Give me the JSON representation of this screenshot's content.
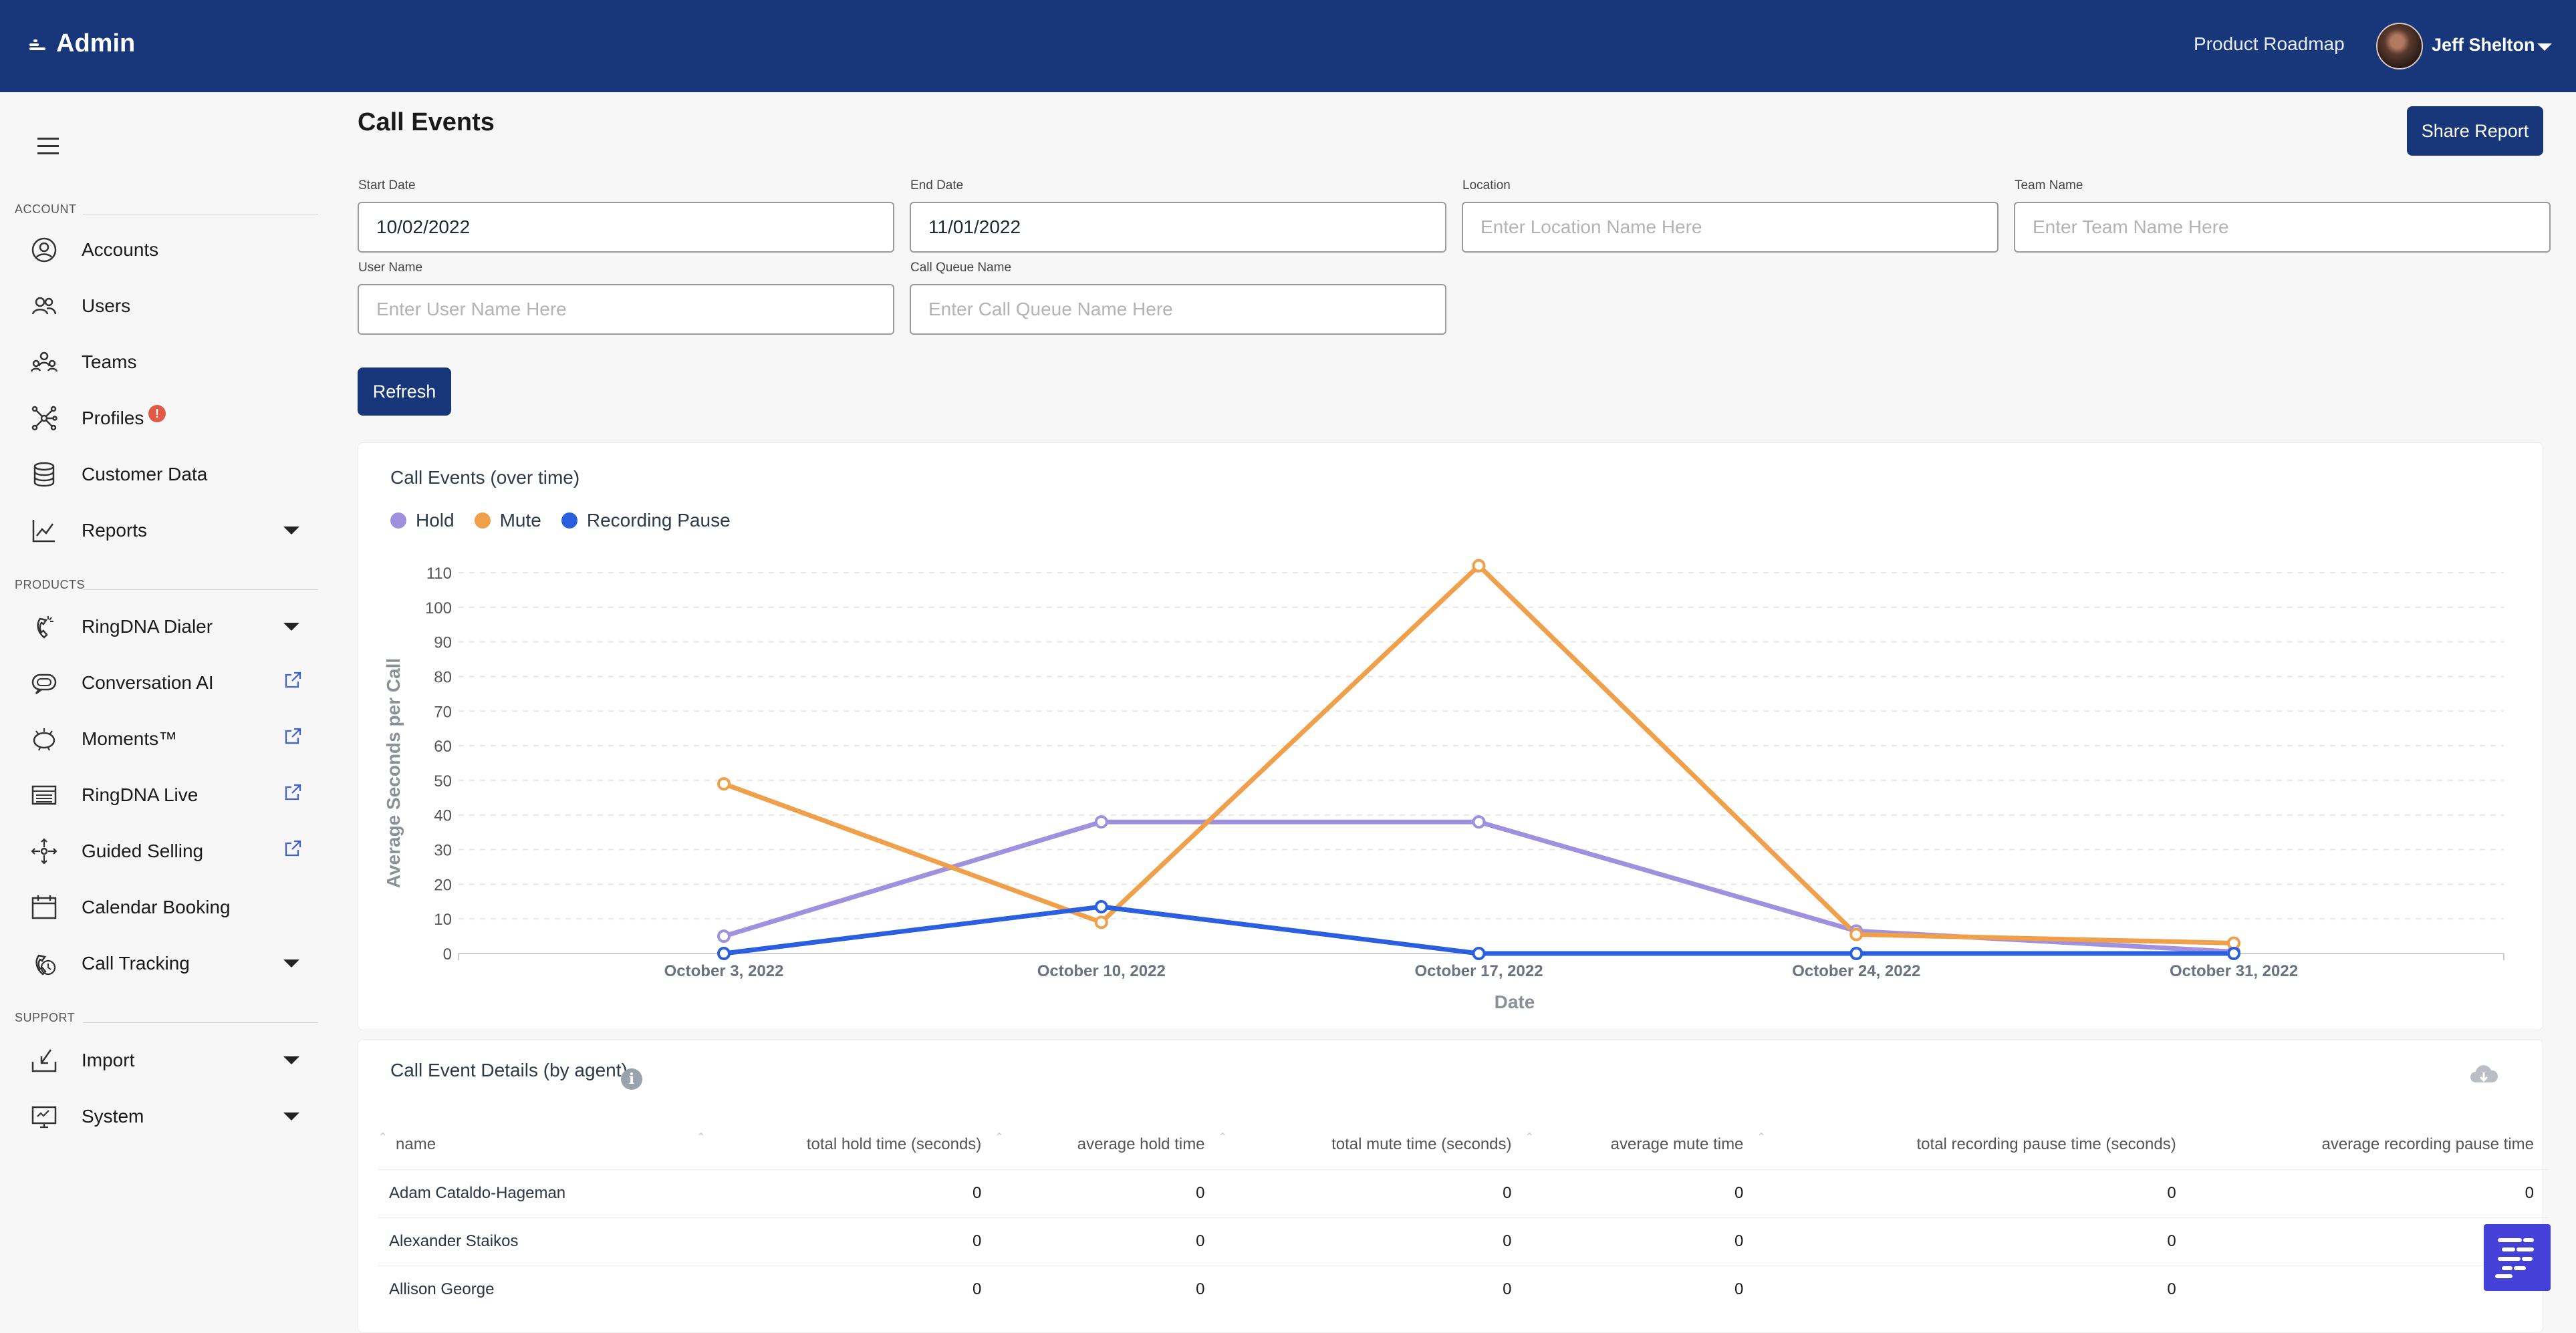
{
  "header": {
    "brand": "Admin",
    "product_roadmap": "Product Roadmap",
    "user_name": "Jeff Shelton"
  },
  "sidebar": {
    "sections": {
      "account": "ACCOUNT",
      "products": "PRODUCTS",
      "support": "SUPPORT"
    },
    "items": [
      {
        "label": "Accounts",
        "icon": "user-circle-icon"
      },
      {
        "label": "Users",
        "icon": "users-icon"
      },
      {
        "label": "Teams",
        "icon": "teams-icon"
      },
      {
        "label": "Profiles",
        "icon": "network-icon",
        "badge": "!"
      },
      {
        "label": "Customer Data",
        "icon": "database-icon"
      },
      {
        "label": "Reports",
        "icon": "chart-line-icon",
        "expandable": true
      },
      {
        "label": "RingDNA Dialer",
        "icon": "phone-icon",
        "expandable": true
      },
      {
        "label": "Conversation AI",
        "icon": "chat-bubble-icon",
        "external": true
      },
      {
        "label": "Moments™",
        "icon": "bell-icon",
        "external": true
      },
      {
        "label": "RingDNA Live",
        "icon": "browser-icon",
        "external": true
      },
      {
        "label": "Guided Selling",
        "icon": "move-arrows-icon",
        "external": true
      },
      {
        "label": "Calendar Booking",
        "icon": "calendar-icon"
      },
      {
        "label": "Call Tracking",
        "icon": "call-tracking-icon",
        "expandable": true
      },
      {
        "label": "Import",
        "icon": "import-icon",
        "expandable": true
      },
      {
        "label": "System",
        "icon": "monitor-icon",
        "expandable": true
      }
    ]
  },
  "main": {
    "title": "Call Events",
    "share_button": "Share Report",
    "filters": {
      "start_date": {
        "label": "Start Date",
        "value": "10/02/2022",
        "placeholder": ""
      },
      "end_date": {
        "label": "End Date",
        "value": "11/01/2022",
        "placeholder": ""
      },
      "location": {
        "label": "Location",
        "value": "",
        "placeholder": "Enter Location Name Here"
      },
      "team_name": {
        "label": "Team Name",
        "value": "",
        "placeholder": "Enter Team Name Here"
      },
      "user_name": {
        "label": "User Name",
        "value": "",
        "placeholder": "Enter User Name Here"
      },
      "call_queue": {
        "label": "Call Queue Name",
        "value": "",
        "placeholder": "Enter Call Queue Name Here"
      }
    },
    "refresh_button": "Refresh"
  },
  "chart_data": {
    "type": "line",
    "title": "Call Events (over time)",
    "xlabel": "Date",
    "ylabel": "Average Seconds per Call",
    "categories": [
      "October 3, 2022",
      "October 10, 2022",
      "October 17, 2022",
      "October 24, 2022",
      "October 31, 2022"
    ],
    "ylim": [
      0,
      110
    ],
    "yticks": [
      0,
      10,
      20,
      30,
      40,
      50,
      60,
      70,
      80,
      90,
      100,
      110
    ],
    "grid": true,
    "legend": "top-left",
    "series": [
      {
        "name": "Hold",
        "color": "#a090e0",
        "values": [
          5,
          38,
          38,
          6.5,
          0.5
        ]
      },
      {
        "name": "Mute",
        "color": "#f0a04b",
        "values": [
          49,
          9,
          112,
          5.5,
          3
        ]
      },
      {
        "name": "Recording Pause",
        "color": "#2a5fe0",
        "values": [
          0,
          13.5,
          0,
          0,
          0
        ]
      }
    ]
  },
  "details": {
    "title": "Call Event Details (by agent)",
    "columns": [
      "name",
      "total hold time (seconds)",
      "average hold time",
      "total mute time (seconds)",
      "average mute time",
      "total recording pause time (seconds)",
      "average recording pause time"
    ],
    "rows": [
      [
        "Adam Cataldo-Hageman",
        "0",
        "0",
        "0",
        "0",
        "0",
        "0"
      ],
      [
        "Alexander Staikos",
        "0",
        "0",
        "0",
        "0",
        "0",
        ""
      ],
      [
        "Allison George",
        "0",
        "0",
        "0",
        "0",
        "0",
        ""
      ]
    ]
  }
}
